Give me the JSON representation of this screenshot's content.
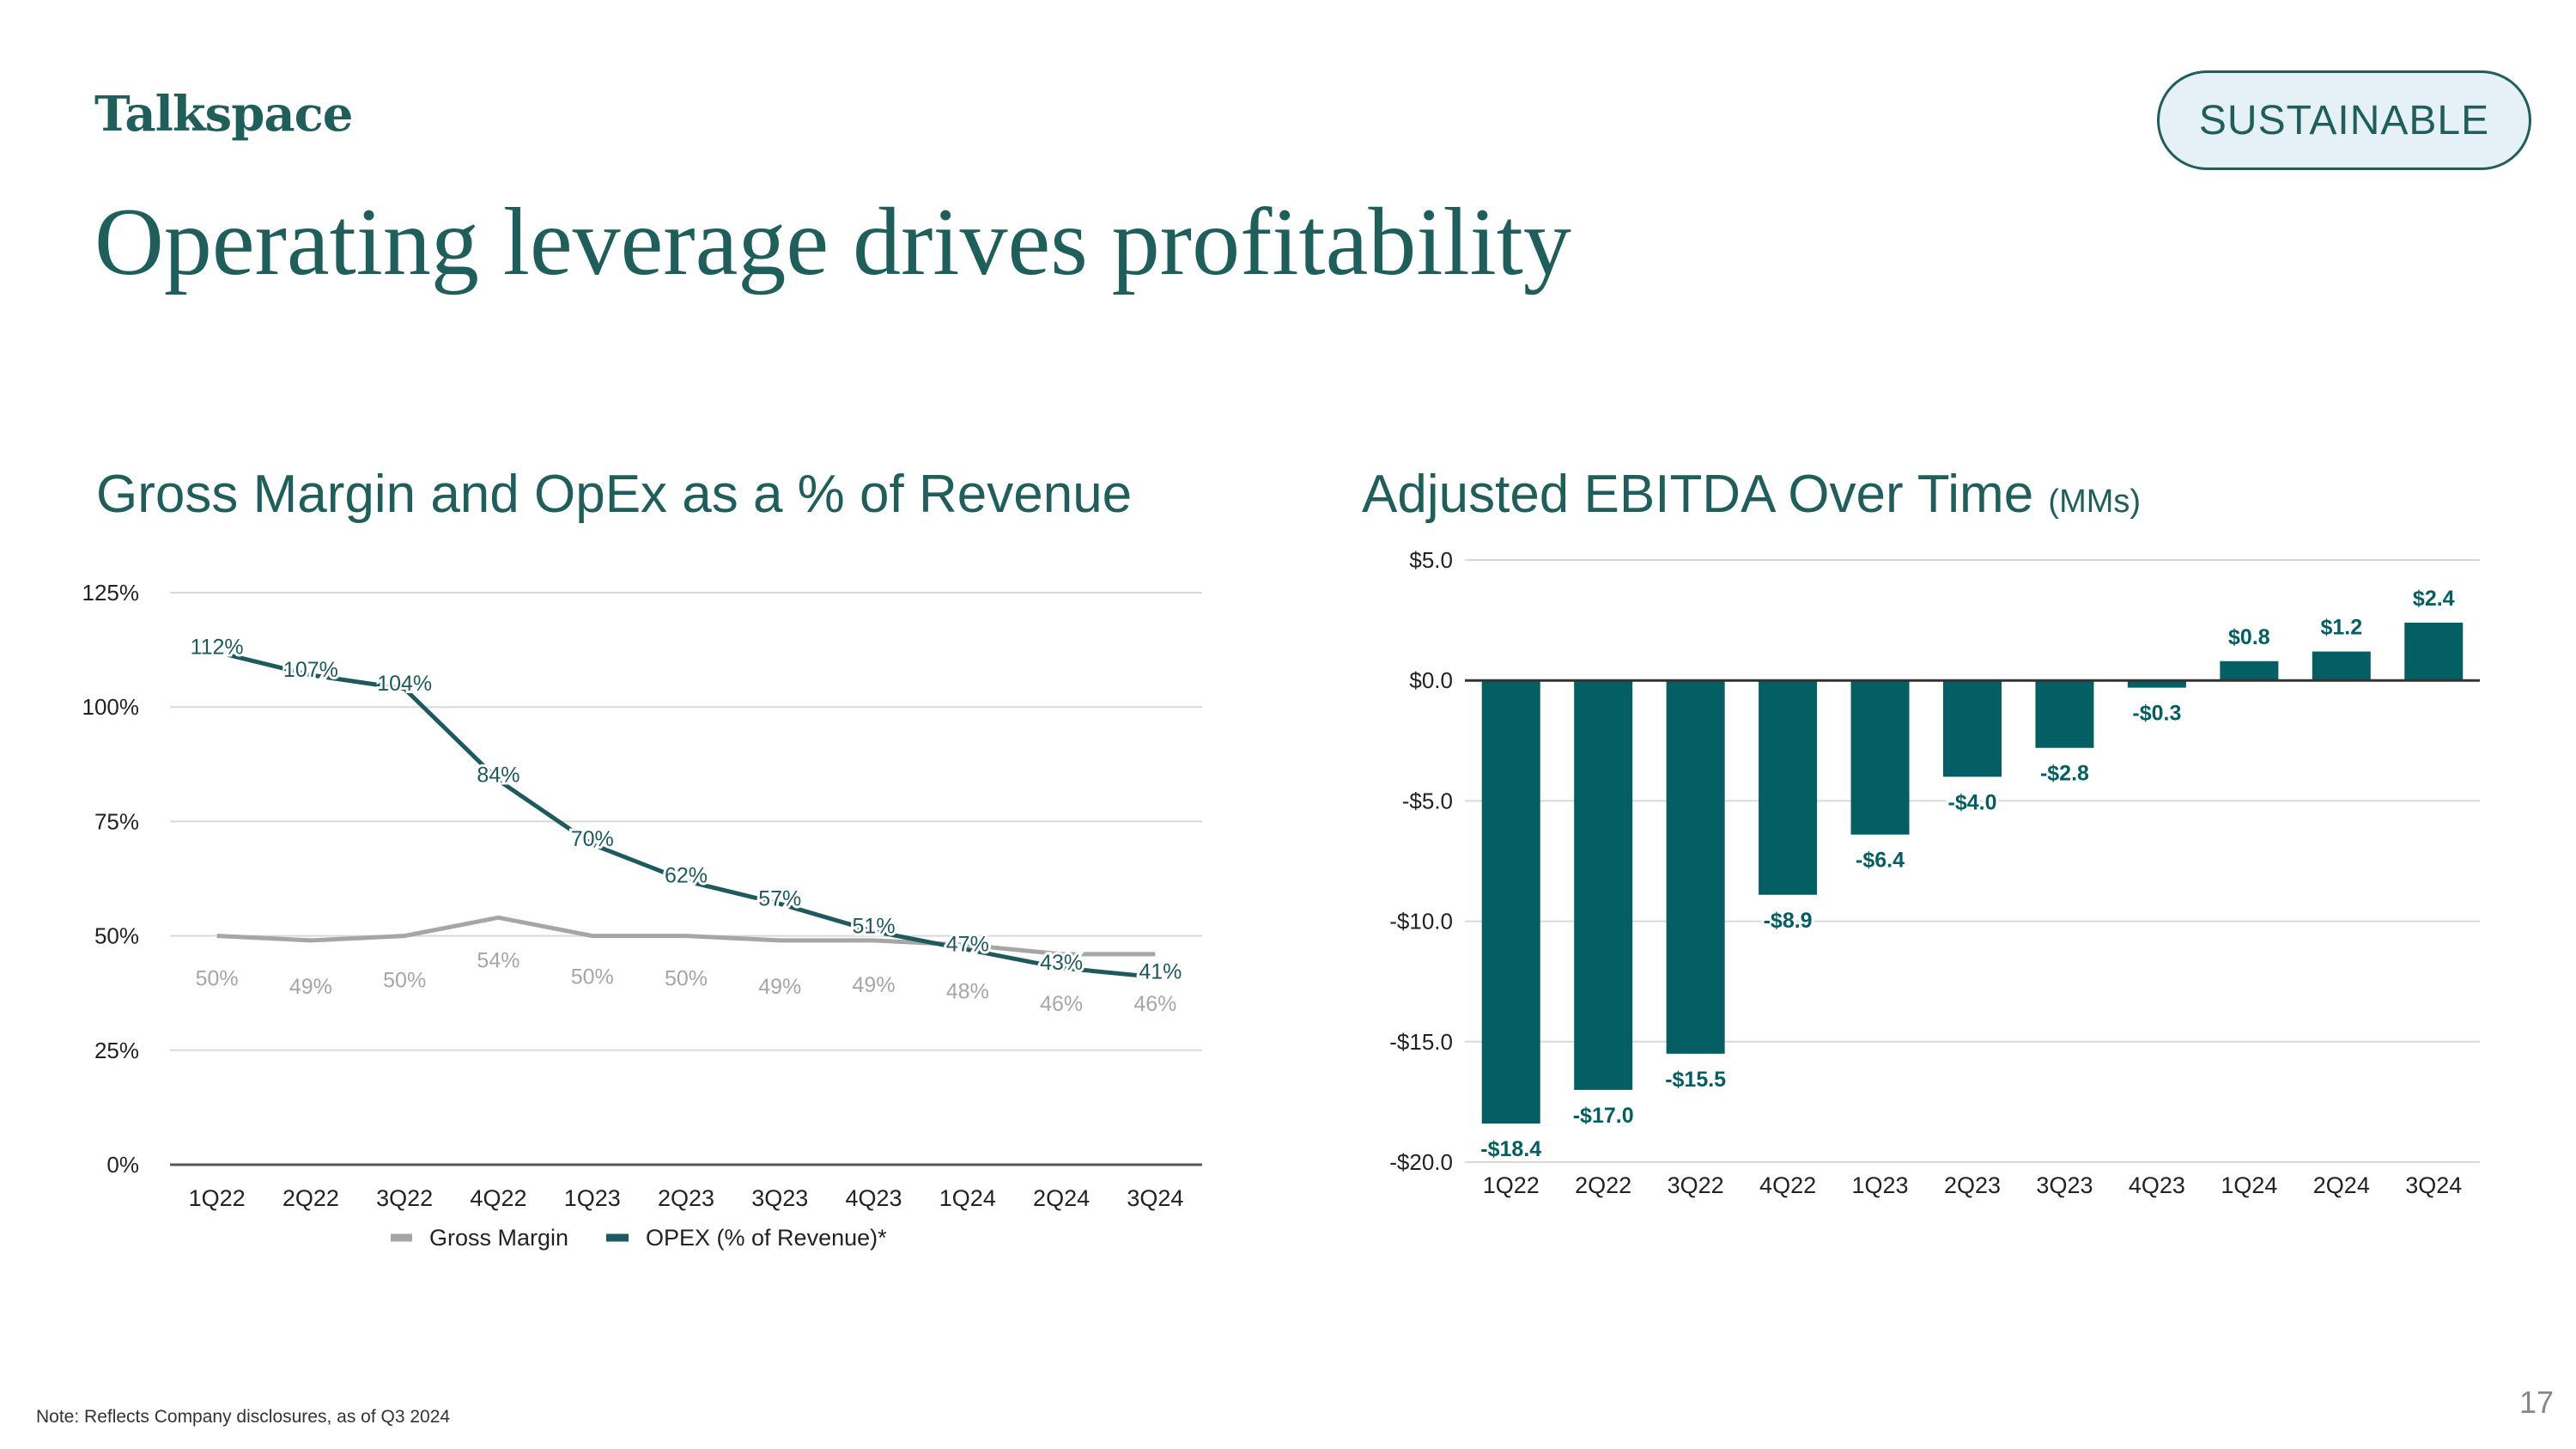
{
  "brand": {
    "logo_text": "Talkspace"
  },
  "badge": {
    "label": "SUSTAINABLE"
  },
  "page": {
    "title": "Operating leverage drives profitability",
    "note": "Note: Reflects Company disclosures, as of Q3 2024",
    "page_number": "17"
  },
  "colors": {
    "brand": "#1f5f5b",
    "bar": "#035f63",
    "gross_margin_line": "#a6a6a6",
    "opex_line": "#1d5a5e",
    "badge_bg": "#e6f1f7"
  },
  "chart_data": [
    {
      "type": "line",
      "title": "Gross Margin and OpEx as a % of Revenue",
      "categories": [
        "1Q22",
        "2Q22",
        "3Q22",
        "4Q22",
        "1Q23",
        "2Q23",
        "3Q23",
        "4Q23",
        "1Q24",
        "2Q24",
        "3Q24"
      ],
      "ylim": [
        0,
        125
      ],
      "yticks": [
        0,
        25,
        50,
        75,
        100,
        125
      ],
      "ytick_labels": [
        "0%",
        "25%",
        "50%",
        "75%",
        "100%",
        "125%"
      ],
      "grid": true,
      "legend": "bottom",
      "series": [
        {
          "name": "Gross Margin",
          "values": [
            50,
            49,
            50,
            54,
            50,
            50,
            49,
            49,
            48,
            46,
            46
          ],
          "labels": [
            "50%",
            "49%",
            "50%",
            "54%",
            "50%",
            "50%",
            "49%",
            "49%",
            "48%",
            "46%",
            "46%"
          ]
        },
        {
          "name": "OPEX (% of Revenue)*",
          "values": [
            112,
            107,
            104,
            84,
            70,
            62,
            57,
            51,
            47,
            43,
            41
          ],
          "labels": [
            "112%",
            "107%",
            "104%",
            "84%",
            "70%",
            "62%",
            "57%",
            "51%",
            "47%",
            "43%",
            "41%"
          ]
        }
      ]
    },
    {
      "type": "bar",
      "title": "Adjusted EBITDA Over Time",
      "unit": "(MMs)",
      "categories": [
        "1Q22",
        "2Q22",
        "3Q22",
        "4Q22",
        "1Q23",
        "2Q23",
        "3Q23",
        "4Q23",
        "1Q24",
        "2Q24",
        "3Q24"
      ],
      "values": [
        -18.4,
        -17.0,
        -15.5,
        -8.9,
        -6.4,
        -4.0,
        -2.8,
        -0.3,
        0.8,
        1.2,
        2.4
      ],
      "labels": [
        "-$18.4",
        "-$17.0",
        "-$15.5",
        "-$8.9",
        "-$6.4",
        "-$4.0",
        "-$2.8",
        "-$0.3",
        "$0.8",
        "$1.2",
        "$2.4"
      ],
      "ylim": [
        -20,
        5
      ],
      "yticks": [
        5,
        0,
        -5,
        -10,
        -15,
        -20
      ],
      "ytick_labels": [
        "$5.0",
        "$0.0",
        "-$5.0",
        "-$10.0",
        "-$15.0",
        "-$20.0"
      ],
      "grid": true
    }
  ]
}
